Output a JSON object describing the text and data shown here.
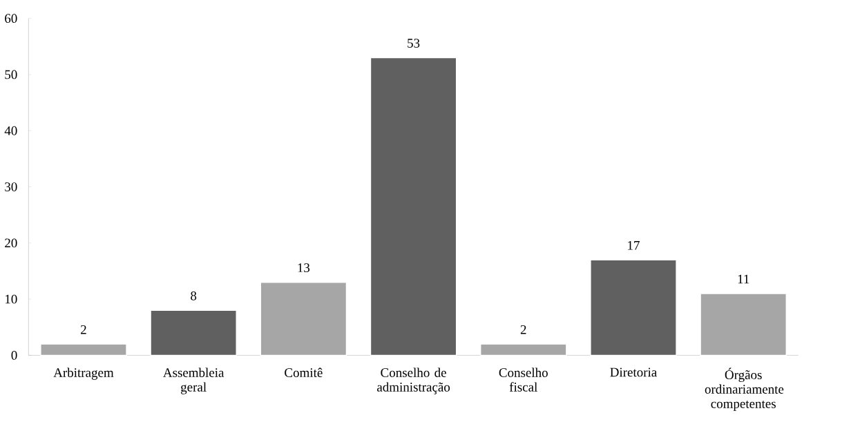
{
  "chart_data": {
    "type": "bar",
    "categories": [
      "Arbitragem",
      "Assembleia geral",
      "Comitê",
      "Conselho de administração",
      "Conselho fiscal",
      "Diretoria",
      "Órgãos ordinariamente competentes"
    ],
    "values": [
      2,
      8,
      13,
      53,
      2,
      17,
      11
    ],
    "colors": [
      "#a6a6a6",
      "#606060",
      "#a6a6a6",
      "#606060",
      "#a6a6a6",
      "#606060",
      "#a6a6a6"
    ],
    "ylim": [
      0,
      60
    ],
    "yticks": [
      0,
      10,
      20,
      30,
      40,
      50,
      60
    ],
    "data_labels": true
  }
}
